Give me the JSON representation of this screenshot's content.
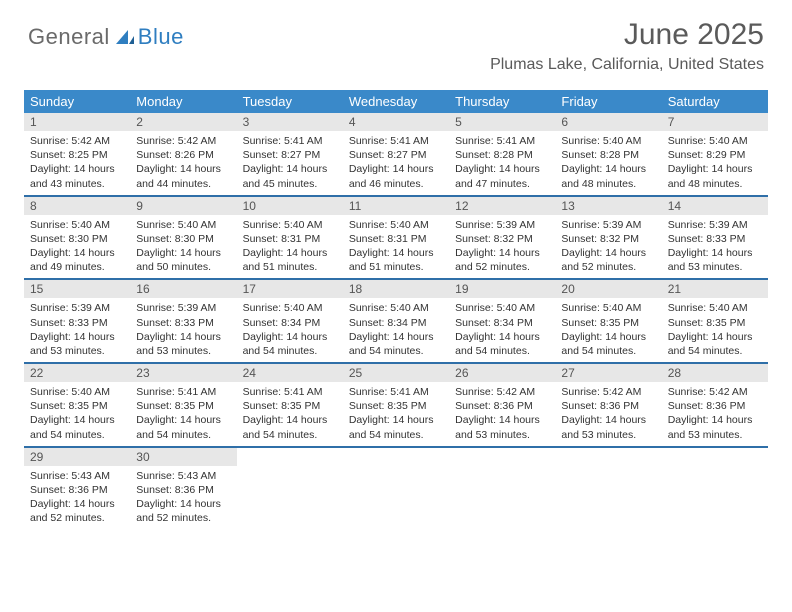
{
  "brand": {
    "general": "General",
    "blue": "Blue"
  },
  "title": "June 2025",
  "location": "Plumas Lake, California, United States",
  "dayNames": [
    "Sunday",
    "Monday",
    "Tuesday",
    "Wednesday",
    "Thursday",
    "Friday",
    "Saturday"
  ],
  "colors": {
    "headerBg": "#3a89c9",
    "weekBorder": "#2f6fa8",
    "dayNumBg": "#e7e7e7",
    "text": "#333333",
    "brandBlue": "#2f7ec0",
    "brandGray": "#6a6a6a"
  },
  "calendar": {
    "type": "table",
    "columns": 7,
    "startDayIndex": 0,
    "daysInMonth": 30,
    "cells": [
      {
        "n": 1,
        "sunrise": "5:42 AM",
        "sunset": "8:25 PM",
        "daylight": "14 hours and 43 minutes."
      },
      {
        "n": 2,
        "sunrise": "5:42 AM",
        "sunset": "8:26 PM",
        "daylight": "14 hours and 44 minutes."
      },
      {
        "n": 3,
        "sunrise": "5:41 AM",
        "sunset": "8:27 PM",
        "daylight": "14 hours and 45 minutes."
      },
      {
        "n": 4,
        "sunrise": "5:41 AM",
        "sunset": "8:27 PM",
        "daylight": "14 hours and 46 minutes."
      },
      {
        "n": 5,
        "sunrise": "5:41 AM",
        "sunset": "8:28 PM",
        "daylight": "14 hours and 47 minutes."
      },
      {
        "n": 6,
        "sunrise": "5:40 AM",
        "sunset": "8:28 PM",
        "daylight": "14 hours and 48 minutes."
      },
      {
        "n": 7,
        "sunrise": "5:40 AM",
        "sunset": "8:29 PM",
        "daylight": "14 hours and 48 minutes."
      },
      {
        "n": 8,
        "sunrise": "5:40 AM",
        "sunset": "8:30 PM",
        "daylight": "14 hours and 49 minutes."
      },
      {
        "n": 9,
        "sunrise": "5:40 AM",
        "sunset": "8:30 PM",
        "daylight": "14 hours and 50 minutes."
      },
      {
        "n": 10,
        "sunrise": "5:40 AM",
        "sunset": "8:31 PM",
        "daylight": "14 hours and 51 minutes."
      },
      {
        "n": 11,
        "sunrise": "5:40 AM",
        "sunset": "8:31 PM",
        "daylight": "14 hours and 51 minutes."
      },
      {
        "n": 12,
        "sunrise": "5:39 AM",
        "sunset": "8:32 PM",
        "daylight": "14 hours and 52 minutes."
      },
      {
        "n": 13,
        "sunrise": "5:39 AM",
        "sunset": "8:32 PM",
        "daylight": "14 hours and 52 minutes."
      },
      {
        "n": 14,
        "sunrise": "5:39 AM",
        "sunset": "8:33 PM",
        "daylight": "14 hours and 53 minutes."
      },
      {
        "n": 15,
        "sunrise": "5:39 AM",
        "sunset": "8:33 PM",
        "daylight": "14 hours and 53 minutes."
      },
      {
        "n": 16,
        "sunrise": "5:39 AM",
        "sunset": "8:33 PM",
        "daylight": "14 hours and 53 minutes."
      },
      {
        "n": 17,
        "sunrise": "5:40 AM",
        "sunset": "8:34 PM",
        "daylight": "14 hours and 54 minutes."
      },
      {
        "n": 18,
        "sunrise": "5:40 AM",
        "sunset": "8:34 PM",
        "daylight": "14 hours and 54 minutes."
      },
      {
        "n": 19,
        "sunrise": "5:40 AM",
        "sunset": "8:34 PM",
        "daylight": "14 hours and 54 minutes."
      },
      {
        "n": 20,
        "sunrise": "5:40 AM",
        "sunset": "8:35 PM",
        "daylight": "14 hours and 54 minutes."
      },
      {
        "n": 21,
        "sunrise": "5:40 AM",
        "sunset": "8:35 PM",
        "daylight": "14 hours and 54 minutes."
      },
      {
        "n": 22,
        "sunrise": "5:40 AM",
        "sunset": "8:35 PM",
        "daylight": "14 hours and 54 minutes."
      },
      {
        "n": 23,
        "sunrise": "5:41 AM",
        "sunset": "8:35 PM",
        "daylight": "14 hours and 54 minutes."
      },
      {
        "n": 24,
        "sunrise": "5:41 AM",
        "sunset": "8:35 PM",
        "daylight": "14 hours and 54 minutes."
      },
      {
        "n": 25,
        "sunrise": "5:41 AM",
        "sunset": "8:35 PM",
        "daylight": "14 hours and 54 minutes."
      },
      {
        "n": 26,
        "sunrise": "5:42 AM",
        "sunset": "8:36 PM",
        "daylight": "14 hours and 53 minutes."
      },
      {
        "n": 27,
        "sunrise": "5:42 AM",
        "sunset": "8:36 PM",
        "daylight": "14 hours and 53 minutes."
      },
      {
        "n": 28,
        "sunrise": "5:42 AM",
        "sunset": "8:36 PM",
        "daylight": "14 hours and 53 minutes."
      },
      {
        "n": 29,
        "sunrise": "5:43 AM",
        "sunset": "8:36 PM",
        "daylight": "14 hours and 52 minutes."
      },
      {
        "n": 30,
        "sunrise": "5:43 AM",
        "sunset": "8:36 PM",
        "daylight": "14 hours and 52 minutes."
      }
    ]
  },
  "labels": {
    "sunrise": "Sunrise:",
    "sunset": "Sunset:",
    "daylight": "Daylight:"
  }
}
